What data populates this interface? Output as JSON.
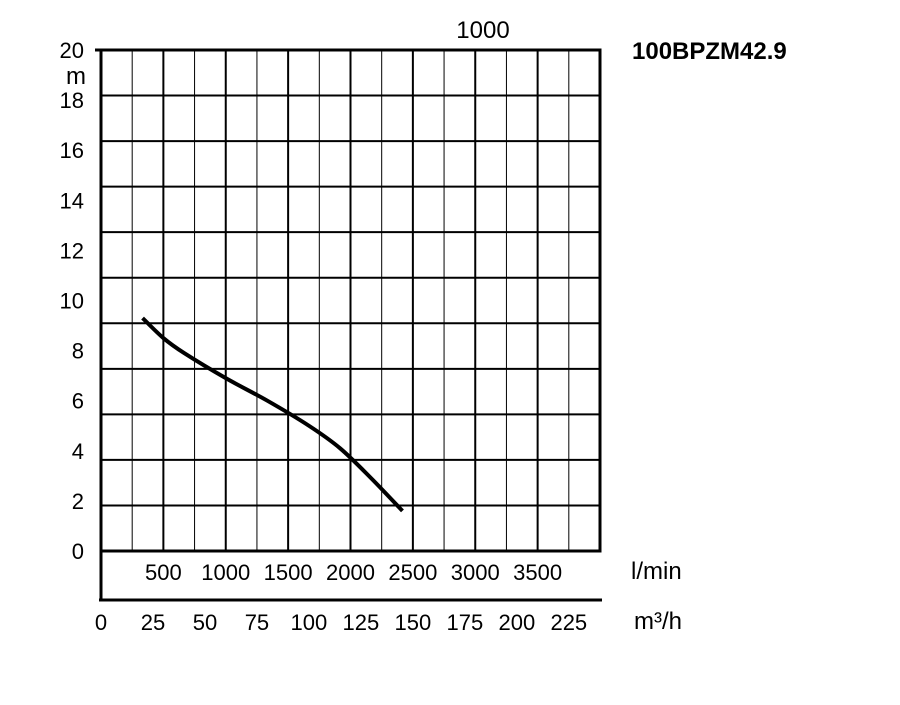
{
  "chart_data": {
    "type": "line",
    "title": "100BPZM42.9",
    "top_label": "1000",
    "ylabel": "m",
    "ylim": [
      0,
      20
    ],
    "yticks": [
      "0",
      "2",
      "4",
      "6",
      "8",
      "10",
      "12",
      "14",
      "16",
      "18",
      "20"
    ],
    "x_primary_unit": "m³/h",
    "x_primary_ticks": [
      "0",
      "25",
      "50",
      "75",
      "100",
      "125",
      "150",
      "175",
      "200",
      "225"
    ],
    "x_secondary_unit": "l/min",
    "x_secondary_ticks": [
      "500",
      "1000",
      "1500",
      "2000",
      "2500",
      "3000",
      "3500"
    ],
    "xlim": [
      0,
      240
    ],
    "grid": true,
    "series": [
      {
        "x_unit": "m³/h",
        "x": [
          20,
          30,
          40,
          60,
          80,
          100,
          115,
          130,
          145
        ],
        "y": [
          9.3,
          8.5,
          7.9,
          6.9,
          6.0,
          5.0,
          4.1,
          2.9,
          1.6
        ]
      }
    ]
  }
}
